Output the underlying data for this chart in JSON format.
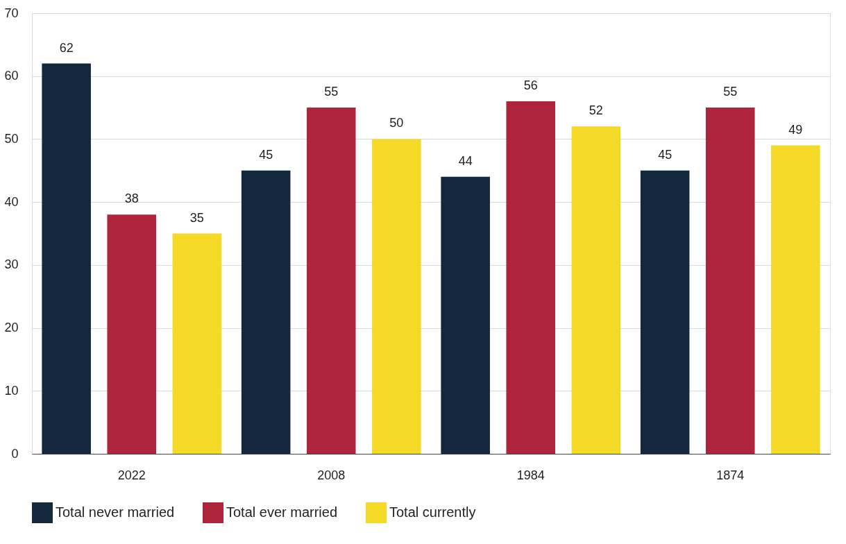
{
  "chart_data": {
    "type": "bar",
    "categories": [
      "2022",
      "2008",
      "1984",
      "1874"
    ],
    "series": [
      {
        "name": "Total never married",
        "color": "#13273d",
        "values": [
          62,
          45,
          44,
          45
        ]
      },
      {
        "name": "Total ever married",
        "color": "#ae243a",
        "values": [
          38,
          55,
          56,
          55
        ]
      },
      {
        "name": "Total currently",
        "color": "#f4da26",
        "values": [
          35,
          50,
          52,
          49
        ]
      }
    ],
    "ylim": [
      0,
      70
    ],
    "yticks": [
      0,
      10,
      20,
      30,
      40,
      50,
      60,
      70
    ],
    "grid": "y",
    "legend": "bottom",
    "data_labels": true
  }
}
